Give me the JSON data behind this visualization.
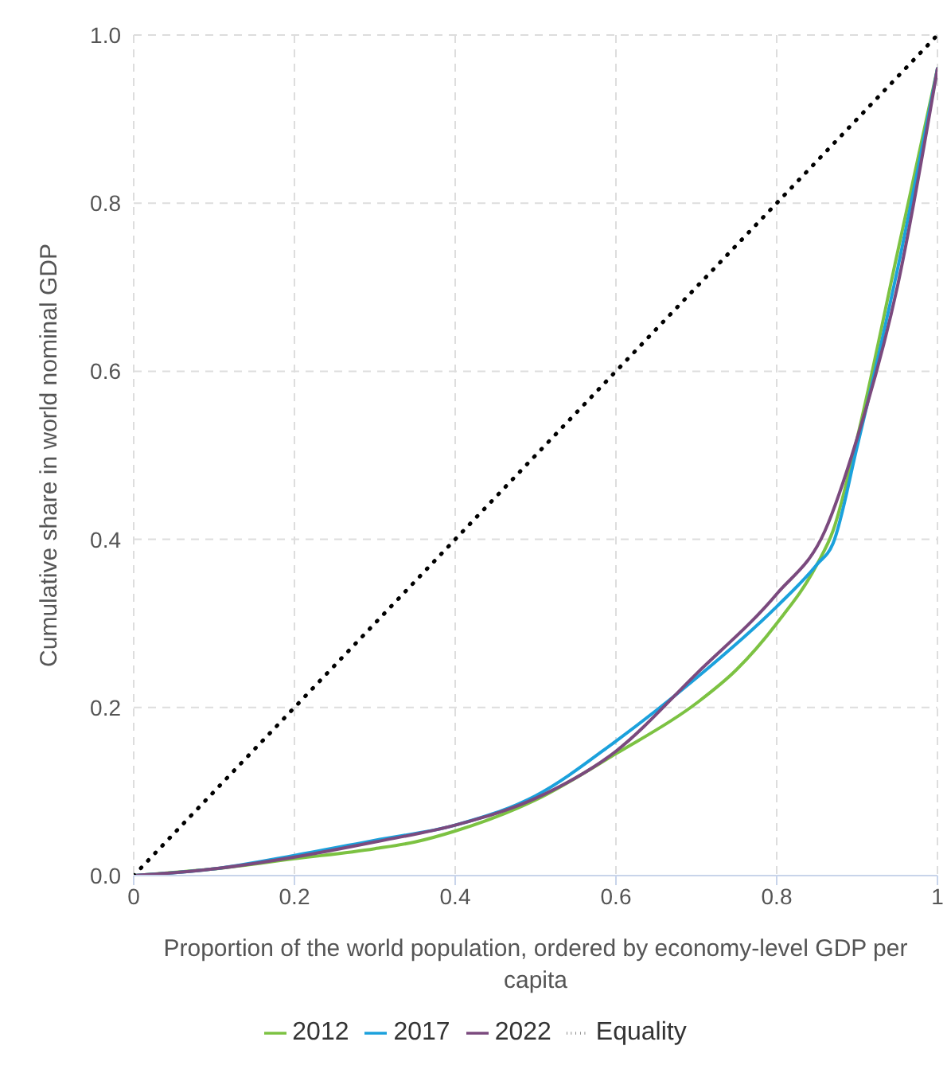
{
  "chart_data": {
    "type": "line",
    "xlabel": "Proportion of the world population, ordered by economy-level GDP per capita",
    "ylabel": "Cumulative share in world nominal GDP",
    "xlim": [
      0,
      1
    ],
    "xticks": [
      0,
      0.2,
      0.4,
      0.6,
      0.8,
      1
    ],
    "ylim": [
      0,
      1
    ],
    "yticks": [
      {
        "value": 0,
        "label": "0.0"
      },
      {
        "value": 0.2,
        "label": "0.2"
      },
      {
        "value": 0.4,
        "label": "0.4"
      },
      {
        "value": 0.6,
        "label": "0.6"
      },
      {
        "value": 0.8,
        "label": "0.8"
      },
      {
        "value": 1,
        "label": "1.0"
      }
    ],
    "grid": true,
    "legend": "bottom",
    "marker": "none",
    "series": [
      {
        "name": "2012",
        "color": "#7cc242",
        "x": [
          0,
          0.1,
          0.2,
          0.3,
          0.35,
          0.4,
          0.5,
          0.6,
          0.7,
          0.75,
          0.8,
          0.85,
          0.87,
          0.9,
          0.95,
          1
        ],
        "values": [
          0,
          0.008,
          0.02,
          0.032,
          0.04,
          0.053,
          0.09,
          0.145,
          0.205,
          0.245,
          0.3,
          0.37,
          0.41,
          0.52,
          0.74,
          0.96
        ]
      },
      {
        "name": "2017",
        "color": "#1ba1dc",
        "x": [
          0,
          0.1,
          0.2,
          0.3,
          0.4,
          0.5,
          0.6,
          0.7,
          0.8,
          0.85,
          0.87,
          0.9,
          0.95,
          1
        ],
        "values": [
          0,
          0.008,
          0.024,
          0.042,
          0.06,
          0.095,
          0.16,
          0.235,
          0.32,
          0.37,
          0.395,
          0.51,
          0.72,
          0.96
        ]
      },
      {
        "name": "2022",
        "color": "#7b4a7e",
        "x": [
          0,
          0.1,
          0.2,
          0.3,
          0.4,
          0.5,
          0.6,
          0.7,
          0.8,
          0.86,
          0.9,
          0.95,
          1
        ],
        "values": [
          0,
          0.008,
          0.022,
          0.04,
          0.06,
          0.092,
          0.148,
          0.24,
          0.335,
          0.41,
          0.52,
          0.7,
          0.96
        ]
      },
      {
        "name": "Equality",
        "color": "#000000",
        "line_style": "dotted",
        "x": [
          0,
          1
        ],
        "values": [
          0,
          1
        ]
      }
    ]
  }
}
